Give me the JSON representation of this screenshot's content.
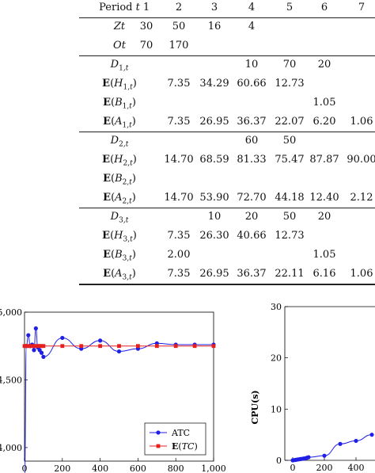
{
  "table": {
    "header": {
      "label": "Period t",
      "periods": [
        "1",
        "2",
        "3",
        "4",
        "5",
        "6",
        "7"
      ]
    },
    "sections": [
      {
        "rows": [
          {
            "label": "Zt",
            "values": [
              "30",
              "50",
              "16",
              "4",
              "",
              "",
              ""
            ]
          },
          {
            "label": "Ot",
            "values": [
              "70",
              "170",
              "",
              "",
              "",
              "",
              ""
            ]
          }
        ]
      },
      {
        "rows": [
          {
            "label": "D1,t",
            "values": [
              "",
              "",
              "",
              "10",
              "70",
              "20",
              ""
            ]
          },
          {
            "label": "E(H1,t)",
            "values": [
              "",
              "7.35",
              "34.29",
              "60.66",
              "12.73",
              "",
              ""
            ]
          },
          {
            "label": "E(B1,t)",
            "values": [
              "",
              "",
              "",
              "",
              "",
              "1.05",
              ""
            ]
          },
          {
            "label": "E(A1,t)",
            "values": [
              "",
              "7.35",
              "26.95",
              "36.37",
              "22.07",
              "6.20",
              "1.06"
            ]
          }
        ]
      },
      {
        "rows": [
          {
            "label": "D2,t",
            "values": [
              "",
              "",
              "",
              "60",
              "50",
              "",
              ""
            ]
          },
          {
            "label": "E(H2,t)",
            "values": [
              "",
              "14.70",
              "68.59",
              "81.33",
              "75.47",
              "87.87",
              "90.00"
            ]
          },
          {
            "label": "E(B2,t)",
            "values": [
              "",
              "",
              "",
              "",
              "",
              "",
              ""
            ]
          },
          {
            "label": "E(A2,t)",
            "values": [
              "",
              "14.70",
              "53.90",
              "72.70",
              "44.18",
              "12.40",
              "2.12"
            ]
          }
        ]
      },
      {
        "rows": [
          {
            "label": "D3,t",
            "values": [
              "",
              "",
              "10",
              "20",
              "50",
              "20",
              ""
            ]
          },
          {
            "label": "E(H3,t)",
            "values": [
              "",
              "7.35",
              "26.30",
              "40.66",
              "12.73",
              "",
              ""
            ]
          },
          {
            "label": "E(B3,t)",
            "values": [
              "",
              "2.00",
              "",
              "",
              "",
              "1.05",
              ""
            ]
          },
          {
            "label": "E(A3,t)",
            "values": [
              "",
              "7.35",
              "26.95",
              "36.37",
              "22.11",
              "6.16",
              "1.06"
            ]
          }
        ]
      }
    ]
  },
  "chart_data": [
    {
      "type": "line",
      "ylabel": "",
      "x_ticks": [
        "0",
        "200",
        "400",
        "600",
        "800",
        "1,000"
      ],
      "y_ticks": [
        "4,000",
        "4,500",
        "5,000"
      ],
      "xlim": [
        0,
        1000
      ],
      "ylim": [
        3900,
        5000
      ],
      "legend": {
        "placement": "bottom-right"
      },
      "colors": {
        "ATC": "#1f1fe6",
        "E(TC)": "#e61f1f"
      },
      "series": [
        {
          "name": "ATC",
          "marker": "circle",
          "x": [
            0,
            10,
            20,
            30,
            40,
            50,
            60,
            70,
            80,
            90,
            100,
            200,
            300,
            400,
            500,
            600,
            700,
            800,
            900,
            1000
          ],
          "y": [
            3750,
            4750,
            4830,
            4750,
            4760,
            4720,
            4880,
            4740,
            4720,
            4700,
            4670,
            4810,
            4730,
            4790,
            4710,
            4730,
            4770,
            4760,
            4760,
            4760
          ]
        },
        {
          "name": "E(TC)",
          "marker": "square",
          "x": [
            0,
            10,
            20,
            30,
            40,
            50,
            60,
            70,
            80,
            90,
            100,
            200,
            300,
            400,
            500,
            600,
            700,
            800,
            900,
            1000
          ],
          "y": [
            4750,
            4750,
            4750,
            4750,
            4750,
            4750,
            4750,
            4750,
            4750,
            4750,
            4750,
            4750,
            4750,
            4750,
            4750,
            4750,
            4750,
            4750,
            4750,
            4750
          ]
        }
      ]
    },
    {
      "type": "line",
      "ylabel": "CPU(s)",
      "x_ticks": [
        "0",
        "200",
        "400"
      ],
      "y_ticks": [
        "0",
        "10",
        "20",
        "30"
      ],
      "ylim": [
        0,
        30
      ],
      "series": [
        {
          "name": "",
          "marker": "circle",
          "x": [
            0,
            10,
            20,
            30,
            40,
            50,
            60,
            70,
            80,
            90,
            100,
            200,
            300,
            400,
            500
          ],
          "y": [
            0,
            0.05,
            0.1,
            0.15,
            0.2,
            0.25,
            0.3,
            0.35,
            0.4,
            0.5,
            0.6,
            0.9,
            3.2,
            3.8,
            5.0
          ]
        }
      ]
    }
  ]
}
